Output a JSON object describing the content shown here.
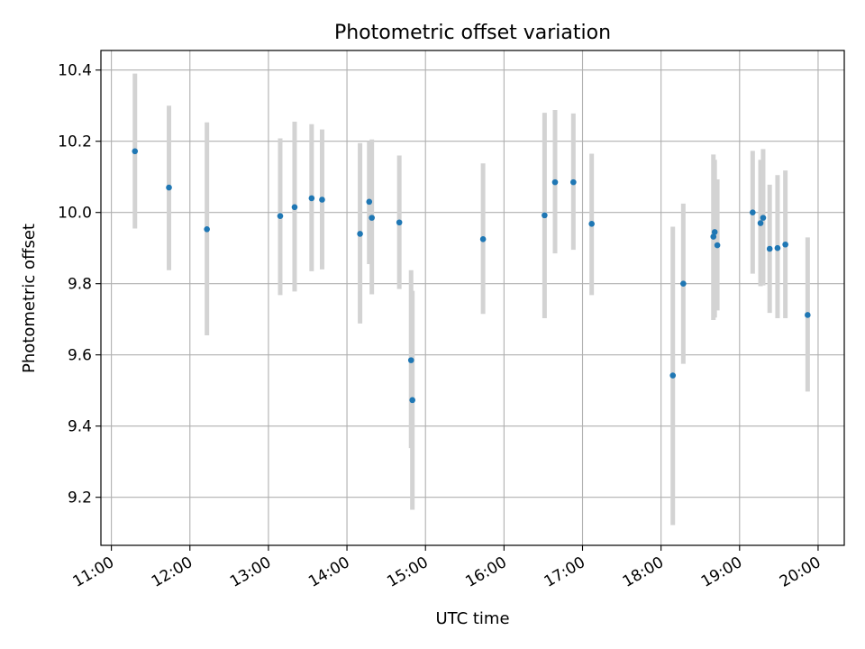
{
  "chart_data": {
    "type": "scatter",
    "title": "Photometric offset variation",
    "xlabel": "UTC time",
    "ylabel": "Photometric offset",
    "x_tick_labels": [
      "11:00",
      "12:00",
      "13:00",
      "14:00",
      "15:00",
      "16:00",
      "17:00",
      "18:00",
      "19:00",
      "20:00"
    ],
    "y_tick_labels": [
      "9.2",
      "9.4",
      "9.6",
      "9.8",
      "10.0",
      "10.2",
      "10.4"
    ],
    "x_ticks": [
      "11:00",
      "12:00",
      "13:00",
      "14:00",
      "15:00",
      "16:00",
      "17:00",
      "18:00",
      "19:00",
      "20:00"
    ],
    "y_ticks": [
      9.2,
      9.4,
      9.6,
      9.8,
      10.0,
      10.2,
      10.4
    ],
    "xlim": [
      "10:52",
      "20:20"
    ],
    "ylim": [
      9.065,
      10.455
    ],
    "grid": true,
    "point_color": "#1f77b4",
    "errorbar_color": "#d3d3d3",
    "series": [
      {
        "points": [
          {
            "x": "11:18",
            "y": 10.172,
            "ylow": 9.955,
            "yhigh": 10.39
          },
          {
            "x": "11:44",
            "y": 10.07,
            "ylow": 9.838,
            "yhigh": 10.3
          },
          {
            "x": "12:13",
            "y": 9.953,
            "ylow": 9.655,
            "yhigh": 10.253
          },
          {
            "x": "13:09",
            "y": 9.99,
            "ylow": 9.768,
            "yhigh": 10.208
          },
          {
            "x": "13:20",
            "y": 10.015,
            "ylow": 9.778,
            "yhigh": 10.255
          },
          {
            "x": "13:33",
            "y": 10.04,
            "ylow": 9.835,
            "yhigh": 10.248
          },
          {
            "x": "13:41",
            "y": 10.036,
            "ylow": 9.84,
            "yhigh": 10.233
          },
          {
            "x": "14:10",
            "y": 9.94,
            "ylow": 9.688,
            "yhigh": 10.195
          },
          {
            "x": "14:17",
            "y": 10.03,
            "ylow": 9.855,
            "yhigh": 10.2
          },
          {
            "x": "14:19",
            "y": 9.985,
            "ylow": 9.77,
            "yhigh": 10.205
          },
          {
            "x": "14:40",
            "y": 9.972,
            "ylow": 9.785,
            "yhigh": 10.16
          },
          {
            "x": "14:49",
            "y": 9.585,
            "ylow": 9.338,
            "yhigh": 9.838
          },
          {
            "x": "14:50",
            "y": 9.473,
            "ylow": 9.165,
            "yhigh": 9.78
          },
          {
            "x": "15:44",
            "y": 9.925,
            "ylow": 9.715,
            "yhigh": 10.138
          },
          {
            "x": "16:31",
            "y": 9.992,
            "ylow": 9.703,
            "yhigh": 10.28
          },
          {
            "x": "16:39",
            "y": 10.085,
            "ylow": 9.885,
            "yhigh": 10.288
          },
          {
            "x": "16:53",
            "y": 10.085,
            "ylow": 9.895,
            "yhigh": 10.278
          },
          {
            "x": "17:07",
            "y": 9.968,
            "ylow": 9.768,
            "yhigh": 10.165
          },
          {
            "x": "18:09",
            "y": 9.542,
            "ylow": 9.122,
            "yhigh": 9.96
          },
          {
            "x": "18:17",
            "y": 9.8,
            "ylow": 9.575,
            "yhigh": 10.025
          },
          {
            "x": "18:40",
            "y": 9.932,
            "ylow": 9.698,
            "yhigh": 10.163
          },
          {
            "x": "18:41",
            "y": 9.945,
            "ylow": 9.705,
            "yhigh": 10.148
          },
          {
            "x": "18:43",
            "y": 9.908,
            "ylow": 9.725,
            "yhigh": 10.093
          },
          {
            "x": "19:10",
            "y": 10.0,
            "ylow": 9.828,
            "yhigh": 10.173
          },
          {
            "x": "19:16",
            "y": 9.97,
            "ylow": 9.793,
            "yhigh": 10.148
          },
          {
            "x": "19:18",
            "y": 9.985,
            "ylow": 9.795,
            "yhigh": 10.178
          },
          {
            "x": "19:23",
            "y": 9.898,
            "ylow": 9.718,
            "yhigh": 10.078
          },
          {
            "x": "19:29",
            "y": 9.9,
            "ylow": 9.703,
            "yhigh": 10.105
          },
          {
            "x": "19:35",
            "y": 9.91,
            "ylow": 9.703,
            "yhigh": 10.118
          },
          {
            "x": "19:52",
            "y": 9.712,
            "ylow": 9.497,
            "yhigh": 9.93
          }
        ]
      }
    ]
  }
}
